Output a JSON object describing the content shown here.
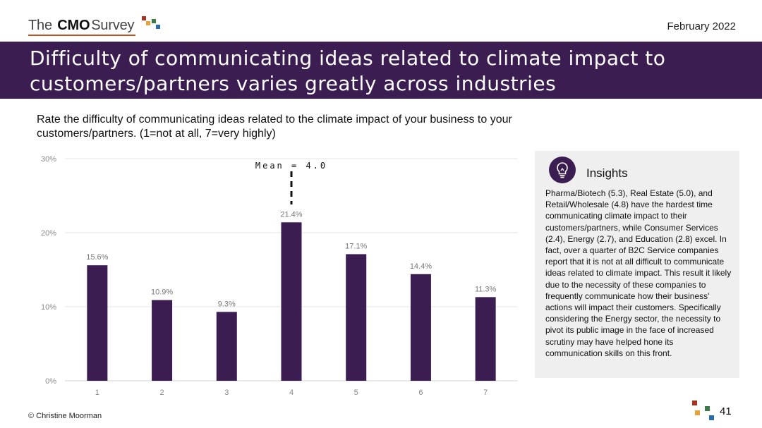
{
  "header": {
    "logo_pre": "The",
    "logo_bold": "CMO",
    "logo_post": "Survey",
    "date": "February 2022"
  },
  "title": "Difficulty of communicating ideas related to climate impact to customers/partners varies greatly across industries",
  "question": "Rate the difficulty of communicating ideas related to the climate impact of your business to your customers/partners. (1=not at all, 7=very highly)",
  "chart_data": {
    "type": "bar",
    "categories": [
      "1",
      "2",
      "3",
      "4",
      "5",
      "6",
      "7"
    ],
    "values": [
      15.6,
      10.9,
      9.3,
      21.4,
      17.1,
      14.4,
      11.3
    ],
    "data_labels": [
      "15.6%",
      "10.9%",
      "9.3%",
      "21.4%",
      "17.1%",
      "14.4%",
      "11.3%"
    ],
    "y_ticks": [
      "0%",
      "10%",
      "20%",
      "30%"
    ],
    "ylim": [
      0,
      30
    ],
    "grid": true,
    "legend": "none",
    "bar_color": "#3b1d52",
    "annotation": {
      "text": "Mean = 4.0",
      "x": 4.0
    }
  },
  "insights": {
    "title": "Insights",
    "icon": "lightbulb-icon",
    "body": "Pharma/Biotech (5.3), Real Estate (5.0), and Retail/Wholesale (4.8) have the hardest time communicating climate impact to their customers/partners, while Consumer Services (2.4), Energy (2.7), and Education (2.8) excel. In fact, over a quarter of B2C Service companies report that it is not at all difficult to communicate ideas related to climate impact. This result it likely due to the necessity of these companies to frequently communicate how their business' actions will impact their customers. Specifically considering the Energy sector, the necessity to pivot its public image in the face of increased scrutiny may have helped hone its communication skills on this front."
  },
  "footer": {
    "copyright": "© Christine Moorman",
    "page": "41"
  },
  "colors": {
    "brand_purple": "#3b1d52",
    "dot_red": "#a8321e",
    "dot_orange": "#e7a23b",
    "dot_green": "#3d7a4a",
    "dot_blue": "#2b6cb0"
  }
}
